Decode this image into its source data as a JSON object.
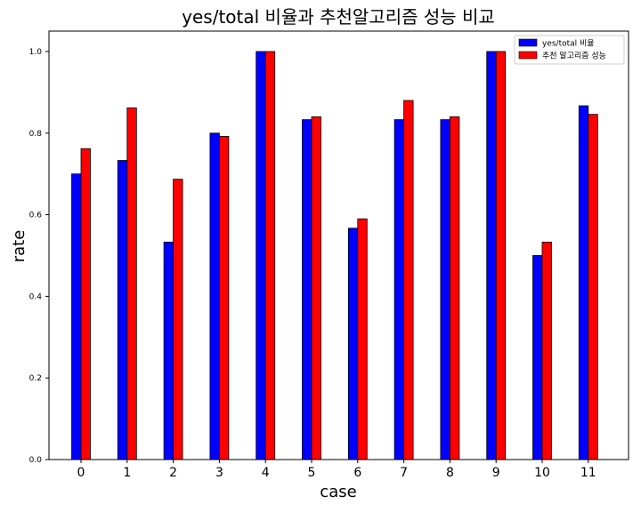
{
  "chart_data": {
    "type": "bar",
    "title": "yes/total 비율과 추천알고리즘 성능 비교",
    "xlabel": "case",
    "ylabel": "rate",
    "categories": [
      "0",
      "1",
      "2",
      "3",
      "4",
      "5",
      "6",
      "7",
      "8",
      "9",
      "10",
      "11"
    ],
    "ylim": [
      0,
      1.05
    ],
    "yticks": [
      "0.0",
      "0.2",
      "0.4",
      "0.6",
      "0.8",
      "1.0"
    ],
    "grid": false,
    "legend_position": "top-right",
    "series": [
      {
        "name": "yes/total 비율",
        "color": "#0000ff",
        "values": [
          0.7,
          0.733,
          0.533,
          0.8,
          1.0,
          0.833,
          0.567,
          0.833,
          0.833,
          1.0,
          0.5,
          0.867
        ]
      },
      {
        "name": "추천 알고리즘 성능",
        "color": "#ff0000",
        "values": [
          0.762,
          0.862,
          0.687,
          0.792,
          1.0,
          0.84,
          0.59,
          0.88,
          0.84,
          1.0,
          0.533,
          0.846
        ]
      }
    ]
  }
}
